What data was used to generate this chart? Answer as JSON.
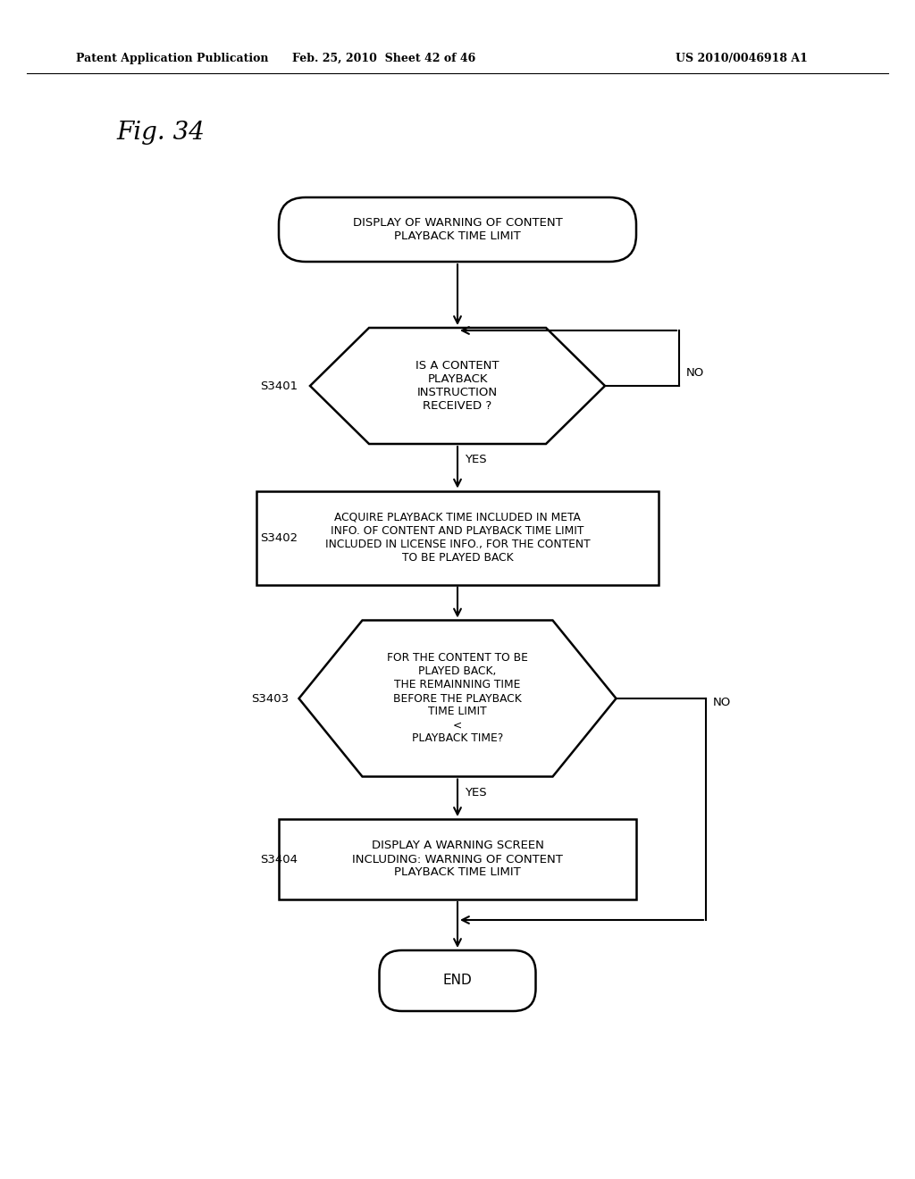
{
  "title": "Fig. 34",
  "header_left": "Patent Application Publication",
  "header_mid": "Feb. 25, 2010  Sheet 42 of 46",
  "header_right": "US 2010/0046918 A1",
  "bg_color": "#ffffff",
  "text_color": "#000000",
  "start_text": "DISPLAY OF WARNING OF CONTENT\nPLAYBACK TIME LIMIT",
  "diamond1_text": "IS A CONTENT\nPLAYBACK\nINSTRUCTION\nRECEIVED ?",
  "diamond1_label": "S3401",
  "rect1_text": "ACQUIRE PLAYBACK TIME INCLUDED IN META\nINFO. OF CONTENT AND PLAYBACK TIME LIMIT\nINCLUDED IN LICENSE INFO., FOR THE CONTENT\nTO BE PLAYED BACK",
  "rect1_label": "S3402",
  "diamond2_text": "FOR THE CONTENT TO BE\nPLAYED BACK,\nTHE REMAINNING TIME\nBEFORE THE PLAYBACK\nTIME LIMIT\n<\nPLAYBACK TIME?",
  "diamond2_label": "S3403",
  "rect2_text": "DISPLAY A WARNING SCREEN\nINCLUDING: WARNING OF CONTENT\nPLAYBACK TIME LIMIT",
  "rect2_label": "S3404",
  "end_text": "END"
}
